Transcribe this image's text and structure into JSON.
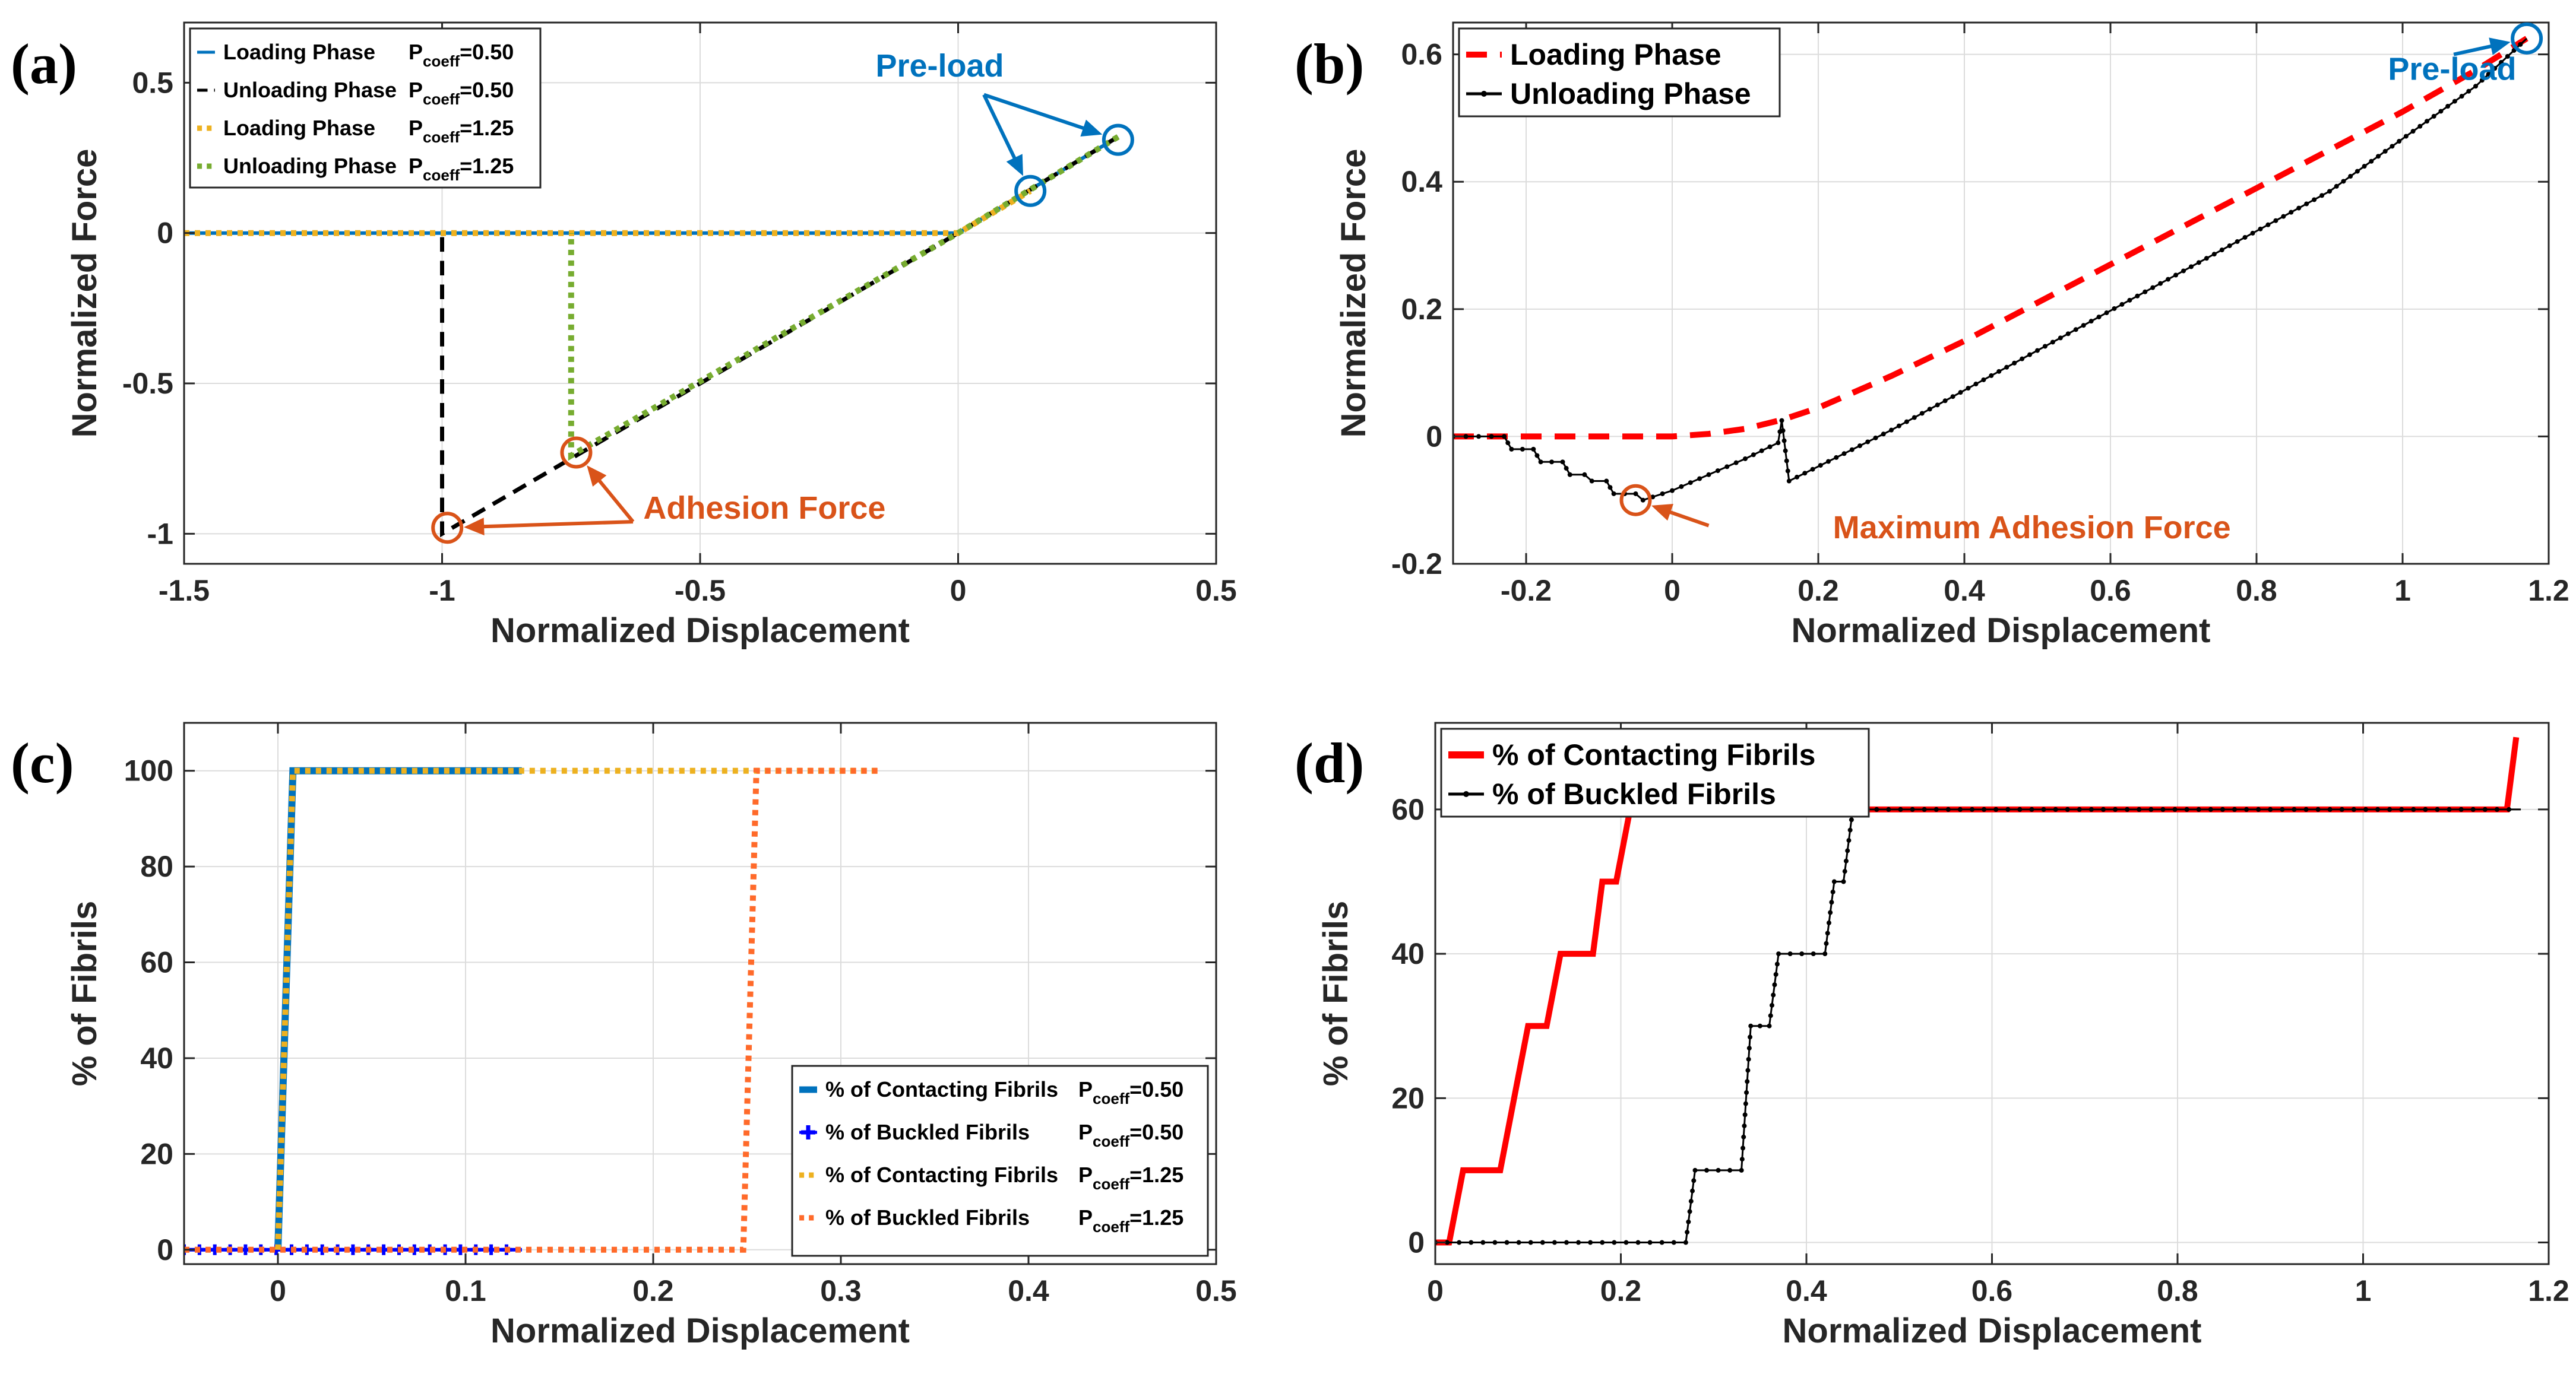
{
  "figure": {
    "panels": [
      "(a)",
      "(b)",
      "(c)",
      "(d)"
    ]
  },
  "chart_data": [
    {
      "id": "a",
      "type": "line",
      "panel_label": "(a)",
      "xlabel": "Normalized Displacement",
      "ylabel": "Normalized Force",
      "xlim": [
        -1.5,
        0.5
      ],
      "ylim": [
        -1.1,
        0.7
      ],
      "xticks": [
        -1.5,
        -1,
        -0.5,
        0,
        0.5
      ],
      "xtick_labels": [
        "-1.5",
        "-1",
        "-0.5",
        "0",
        "0.5"
      ],
      "yticks": [
        -1,
        -0.5,
        0,
        0.5
      ],
      "ytick_labels": [
        "-1",
        "-0.5",
        "0",
        "0.5"
      ],
      "grid": true,
      "legend_position": "top-left",
      "legend": [
        {
          "label": "Loading Phase",
          "param": "P",
          "sub": "coeff",
          "value": "=0.50",
          "color": "#0072BD",
          "dash": "none"
        },
        {
          "label": "Unloading Phase",
          "param": "P",
          "sub": "coeff",
          "value": "=0.50",
          "color": "#000000",
          "dash": "dashed"
        },
        {
          "label": "Loading Phase",
          "param": "P",
          "sub": "coeff",
          "value": "=1.25",
          "color": "#EDB120",
          "dash": "dotted"
        },
        {
          "label": "Unloading Phase",
          "param": "P",
          "sub": "coeff",
          "value": "=1.25",
          "color": "#77AC30",
          "dash": "dotted"
        }
      ],
      "series": [
        {
          "name": "Loading Phase P_coeff=0.50",
          "color": "#0072BD",
          "x": [
            -1.5,
            0,
            0.31
          ],
          "y": [
            0,
            0,
            0.32
          ]
        },
        {
          "name": "Unloading Phase P_coeff=0.50",
          "color": "#000000",
          "x": [
            0.31,
            0,
            -1,
            -1
          ],
          "y": [
            0.32,
            0,
            -1,
            0
          ]
        },
        {
          "name": "Loading Phase P_coeff=1.25",
          "color": "#EDB120",
          "x": [
            -1.5,
            0,
            0.14
          ],
          "y": [
            0,
            0,
            0.14
          ]
        },
        {
          "name": "Unloading Phase P_coeff=1.25",
          "color": "#77AC30",
          "x": [
            0.31,
            0,
            -0.75,
            -0.75
          ],
          "y": [
            0.32,
            0,
            -0.74,
            0
          ]
        }
      ],
      "markers": [
        {
          "x": 0.14,
          "y": 0.14,
          "color": "#0072BD"
        },
        {
          "x": 0.31,
          "y": 0.31,
          "color": "#0072BD"
        },
        {
          "x": -0.74,
          "y": -0.73,
          "color": "#D95319"
        },
        {
          "x": -0.99,
          "y": -0.98,
          "color": "#D95319"
        }
      ],
      "annotations": [
        {
          "text": "Pre-load",
          "x": -0.16,
          "y": 0.52,
          "color": "#0072BD",
          "arrows": [
            [
              0.14,
              0.14
            ],
            [
              0.31,
              0.31
            ]
          ],
          "arrow_from": [
            0.05,
            0.46
          ]
        },
        {
          "text": "Adhesion Force",
          "x": -0.61,
          "y": -0.95,
          "color": "#D95319",
          "arrows": [
            [
              -0.74,
              -0.73
            ],
            [
              -0.99,
              -0.98
            ]
          ],
          "arrow_from": [
            -0.63,
            -0.96
          ]
        }
      ]
    },
    {
      "id": "b",
      "type": "line",
      "panel_label": "(b)",
      "xlabel": "Normalized Displacement",
      "ylabel": "Normalized Force",
      "xlim": [
        -0.3,
        1.2
      ],
      "ylim": [
        -0.2,
        0.65
      ],
      "xticks": [
        -0.2,
        0,
        0.2,
        0.4,
        0.6,
        0.8,
        1,
        1.2
      ],
      "xtick_labels": [
        "-0.2",
        "0",
        "0.2",
        "0.4",
        "0.6",
        "0.8",
        "1",
        "1.2"
      ],
      "yticks": [
        -0.2,
        0,
        0.2,
        0.4,
        0.6
      ],
      "ytick_labels": [
        "-0.2",
        "0",
        "0.2",
        "0.4",
        "0.6"
      ],
      "grid": true,
      "legend_position": "top-left",
      "legend": [
        {
          "label": "Loading Phase",
          "color": "#FF0000",
          "dash": "dashed"
        },
        {
          "label": "Unloading Phase",
          "color": "#000000",
          "dash": "marker"
        }
      ],
      "series": [
        {
          "name": "Loading Phase",
          "color": "#FF0000",
          "x": [
            -0.3,
            -0.2,
            -0.1,
            0,
            0.05,
            0.1,
            0.15,
            0.2,
            0.3,
            0.4,
            0.5,
            0.6,
            0.7,
            0.8,
            0.9,
            1.0,
            1.1,
            1.17
          ],
          "y": [
            0,
            0,
            0,
            0,
            0.004,
            0.012,
            0.026,
            0.045,
            0.095,
            0.15,
            0.21,
            0.27,
            0.33,
            0.39,
            0.45,
            0.51,
            0.575,
            0.625
          ]
        },
        {
          "name": "Unloading Phase",
          "color": "#000000",
          "x": [
            -0.3,
            -0.23,
            -0.22,
            -0.19,
            -0.18,
            -0.15,
            -0.14,
            -0.12,
            -0.11,
            -0.09,
            -0.08,
            -0.05,
            -0.04,
            0.0,
            0.05,
            0.1,
            0.145,
            0.15,
            0.16,
            0.3,
            0.5,
            0.7,
            0.9,
            1.1,
            1.17
          ],
          "y": [
            0,
            0,
            -0.02,
            -0.02,
            -0.04,
            -0.04,
            -0.06,
            -0.06,
            -0.07,
            -0.07,
            -0.09,
            -0.09,
            -0.1,
            -0.085,
            -0.06,
            -0.035,
            -0.01,
            0.025,
            -0.07,
            0.01,
            0.135,
            0.26,
            0.385,
            0.55,
            0.625
          ]
        }
      ],
      "markers": [
        {
          "x": 1.17,
          "y": 0.625,
          "color": "#0072BD"
        },
        {
          "x": -0.05,
          "y": -0.1,
          "color": "#D95319"
        }
      ],
      "annotations": [
        {
          "text": "Pre-load",
          "x": 0.98,
          "y": 0.56,
          "color": "#0072BD",
          "arrows": [
            [
              1.17,
              0.625
            ]
          ],
          "arrow_from": [
            1.07,
            0.6
          ]
        },
        {
          "text": "Maximum Adhesion Force",
          "x": 0.22,
          "y": -0.16,
          "color": "#D95319",
          "arrows": [
            [
              -0.05,
              -0.1
            ]
          ],
          "arrow_from": [
            0.05,
            -0.14
          ]
        }
      ]
    },
    {
      "id": "c",
      "type": "line",
      "panel_label": "(c)",
      "xlabel": "Normalized Displacement",
      "ylabel": "% of Fibrils",
      "xlim": [
        -0.05,
        0.5
      ],
      "ylim": [
        -3,
        110
      ],
      "xticks": [
        0,
        0.1,
        0.2,
        0.3,
        0.4,
        0.5
      ],
      "xtick_labels": [
        "0",
        "0.1",
        "0.2",
        "0.3",
        "0.4",
        "0.5"
      ],
      "yticks": [
        0,
        20,
        40,
        60,
        80,
        100
      ],
      "ytick_labels": [
        "0",
        "20",
        "40",
        "60",
        "80",
        "100"
      ],
      "grid": true,
      "legend_position": "bottom-right",
      "legend": [
        {
          "label": "% of Contacting Fibrils",
          "param": "P",
          "sub": "coeff",
          "value": "=0.50",
          "color": "#0072BD",
          "dash": "solid-thick"
        },
        {
          "label": "% of Buckled Fibrils",
          "param": "P",
          "sub": "coeff",
          "value": "=0.50",
          "color": "#0000FF",
          "dash": "star"
        },
        {
          "label": "% of Contacting Fibrils",
          "param": "P",
          "sub": "coeff",
          "value": "=1.25",
          "color": "#EDB120",
          "dash": "dotted"
        },
        {
          "label": "% of Buckled Fibrils",
          "param": "P",
          "sub": "coeff",
          "value": "=1.25",
          "color": "#FF6A2A",
          "dash": "dotted"
        }
      ],
      "series": [
        {
          "name": "% of Contacting Fibrils P_coeff=0.50",
          "color": "#0072BD",
          "x": [
            0,
            0.008,
            0.13
          ],
          "y": [
            0,
            100,
            100
          ]
        },
        {
          "name": "% of Buckled Fibrils P_coeff=0.50",
          "color": "#0000FF",
          "x": [
            -0.05,
            0.13
          ],
          "y": [
            0,
            0
          ]
        },
        {
          "name": "% of Contacting Fibrils P_coeff=1.25",
          "color": "#EDB120",
          "x": [
            0,
            0.008,
            0.32
          ],
          "y": [
            0,
            100,
            100
          ]
        },
        {
          "name": "% of Buckled Fibrils P_coeff=1.25",
          "color": "#FF6A2A",
          "x": [
            -0.05,
            0.248,
            0.255,
            0.32
          ],
          "y": [
            0,
            0,
            100,
            100
          ]
        }
      ]
    },
    {
      "id": "d",
      "type": "line",
      "panel_label": "(d)",
      "xlabel": "Normalized Displacement",
      "ylabel": "% of Fibrils",
      "xlim": [
        0,
        1.2
      ],
      "ylim": [
        -3,
        72
      ],
      "xticks": [
        0,
        0.2,
        0.4,
        0.6,
        0.8,
        1,
        1.2
      ],
      "xtick_labels": [
        "0",
        "0.2",
        "0.4",
        "0.6",
        "0.8",
        "1",
        "1.2"
      ],
      "yticks": [
        0,
        20,
        40,
        60
      ],
      "ytick_labels": [
        "0",
        "20",
        "40",
        "60"
      ],
      "grid": true,
      "legend_position": "top-left",
      "legend": [
        {
          "label": "% of Contacting Fibrils",
          "color": "#FF0000",
          "dash": "solid-thick"
        },
        {
          "label": "% of Buckled Fibrils",
          "color": "#000000",
          "dash": "marker"
        }
      ],
      "series": [
        {
          "name": "% of Contacting Fibrils",
          "color": "#FF0000",
          "x": [
            0,
            0.015,
            0.03,
            0.07,
            0.085,
            0.1,
            0.12,
            0.135,
            0.15,
            0.17,
            0.18,
            0.195,
            0.21,
            1.155,
            1.165
          ],
          "y": [
            0,
            0,
            10,
            10,
            20,
            30,
            30,
            40,
            40,
            40,
            50,
            50,
            60,
            60,
            70
          ]
        },
        {
          "name": "% of Buckled Fibrils",
          "color": "#000000",
          "x": [
            0,
            0.27,
            0.28,
            0.33,
            0.34,
            0.36,
            0.37,
            0.42,
            0.43,
            0.44,
            0.45,
            1.17
          ],
          "y": [
            0,
            0,
            10,
            10,
            30,
            30,
            40,
            40,
            50,
            50,
            60,
            60
          ]
        }
      ]
    }
  ]
}
